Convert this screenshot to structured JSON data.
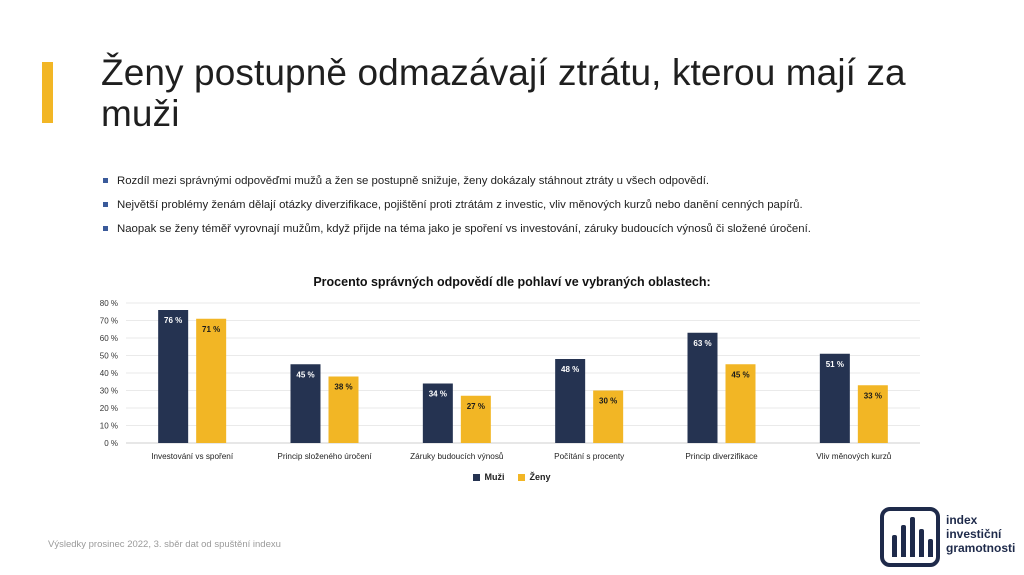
{
  "slide": {
    "title": "Ženy postupně odmazávají ztrátu, kterou mají za muži",
    "bullets": [
      "Rozdíl mezi správnými odpověďmi mužů a žen se postupně snižuje, ženy dokázaly stáhnout ztráty u všech odpovědí.",
      "Největší problémy ženám dělají otázky diverzifikace, pojištění proti ztrátám z investic, vliv měnových kurzů nebo danění cenných papírů.",
      "Naopak se ženy téměř vyrovnají mužům, když přijde na téma jako je spoření vs investování, záruky budoucích výnosů či složené úročení."
    ],
    "footer": "Výsledky prosinec 2022, 3. sběr dat od spuštění indexu"
  },
  "logo": {
    "lines": [
      "index",
      "investiční",
      "gramotnosti"
    ]
  },
  "chart_data": {
    "type": "bar",
    "title": "Procento správných odpovědí dle pohlaví ve vybraných oblastech:",
    "categories": [
      "Investování vs spoření",
      "Princip složeného úročení",
      "Záruky budoucích výnosů",
      "Počítání s procenty",
      "Princip diverzifikace",
      "Vliv měnových kurzů"
    ],
    "series": [
      {
        "name": "Muži",
        "color": "#253351",
        "values": [
          76,
          45,
          34,
          48,
          63,
          51
        ]
      },
      {
        "name": "Ženy",
        "color": "#f2b625",
        "values": [
          71,
          38,
          27,
          30,
          45,
          33
        ]
      }
    ],
    "ylim": [
      0,
      80
    ],
    "yticks": [
      0,
      10,
      20,
      30,
      40,
      50,
      60,
      70,
      80
    ],
    "tick_suffix": " %",
    "grid": true,
    "legend": "bottom"
  }
}
